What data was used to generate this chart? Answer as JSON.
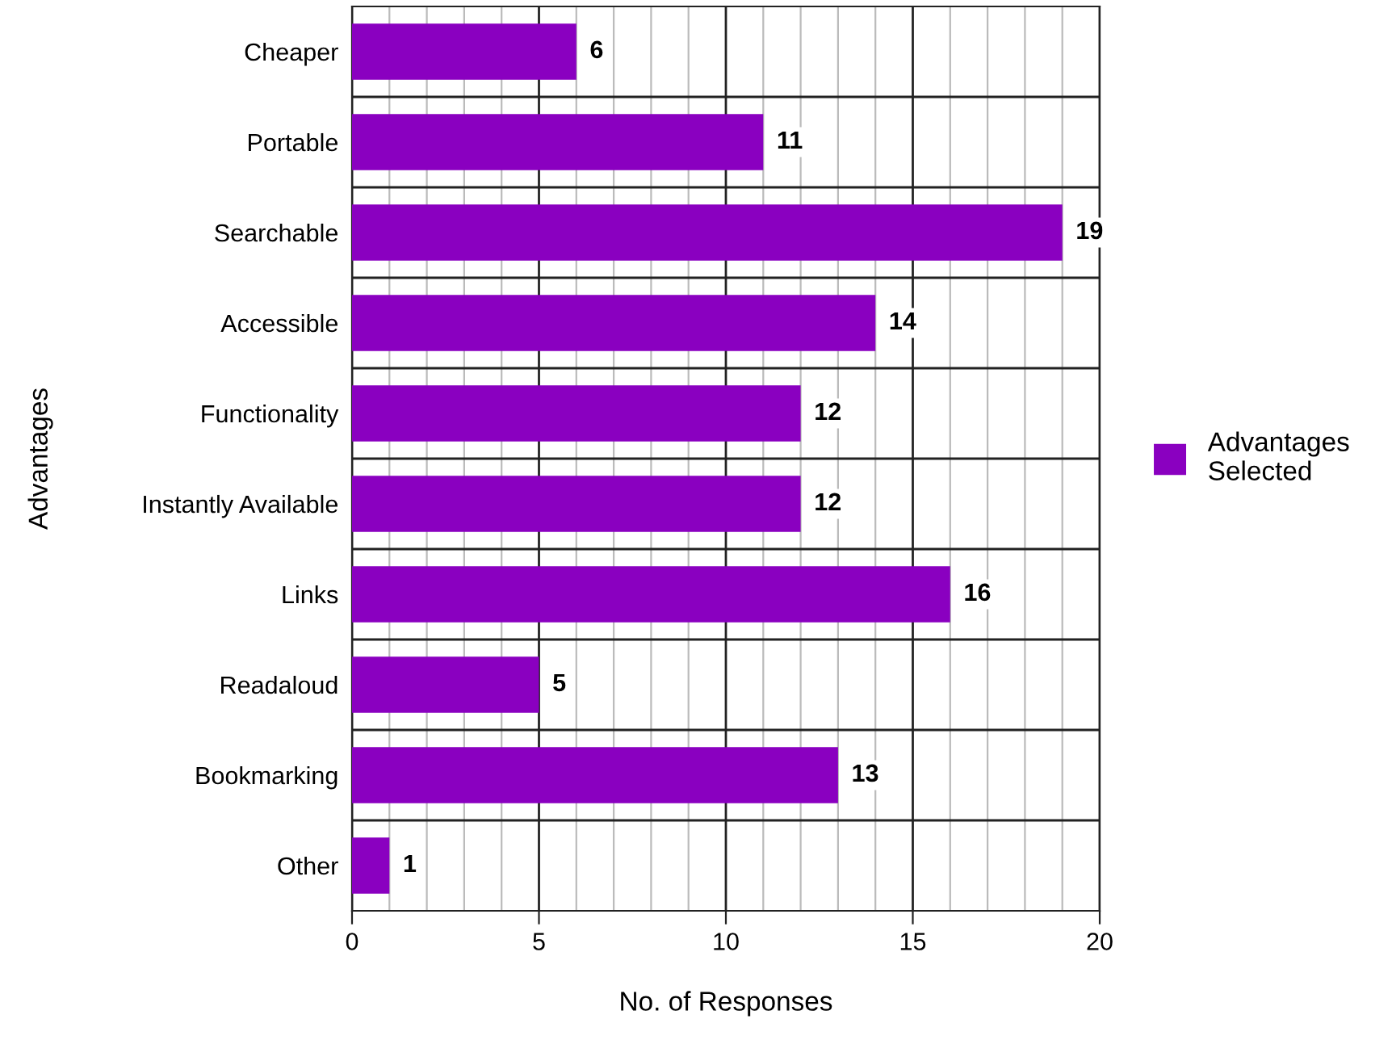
{
  "chart_data": {
    "type": "bar",
    "orientation": "horizontal",
    "xlabel": "No. of Responses",
    "ylabel": "Advantages",
    "categories": [
      "Cheaper",
      "Portable",
      "Searchable",
      "Accessible",
      "Functionality",
      "Instantly Available",
      "Links",
      "Readaloud",
      "Bookmarking",
      "Other"
    ],
    "series": [
      {
        "name": "Advantages\nSelected",
        "color": "#8a00c0",
        "values": [
          6,
          11,
          19,
          14,
          12,
          12,
          16,
          5,
          13,
          1
        ]
      }
    ],
    "data_labels": true,
    "xlim": [
      0,
      20
    ],
    "xticks": [
      0,
      5,
      10,
      15,
      20
    ],
    "grid": true,
    "legend": "right"
  }
}
